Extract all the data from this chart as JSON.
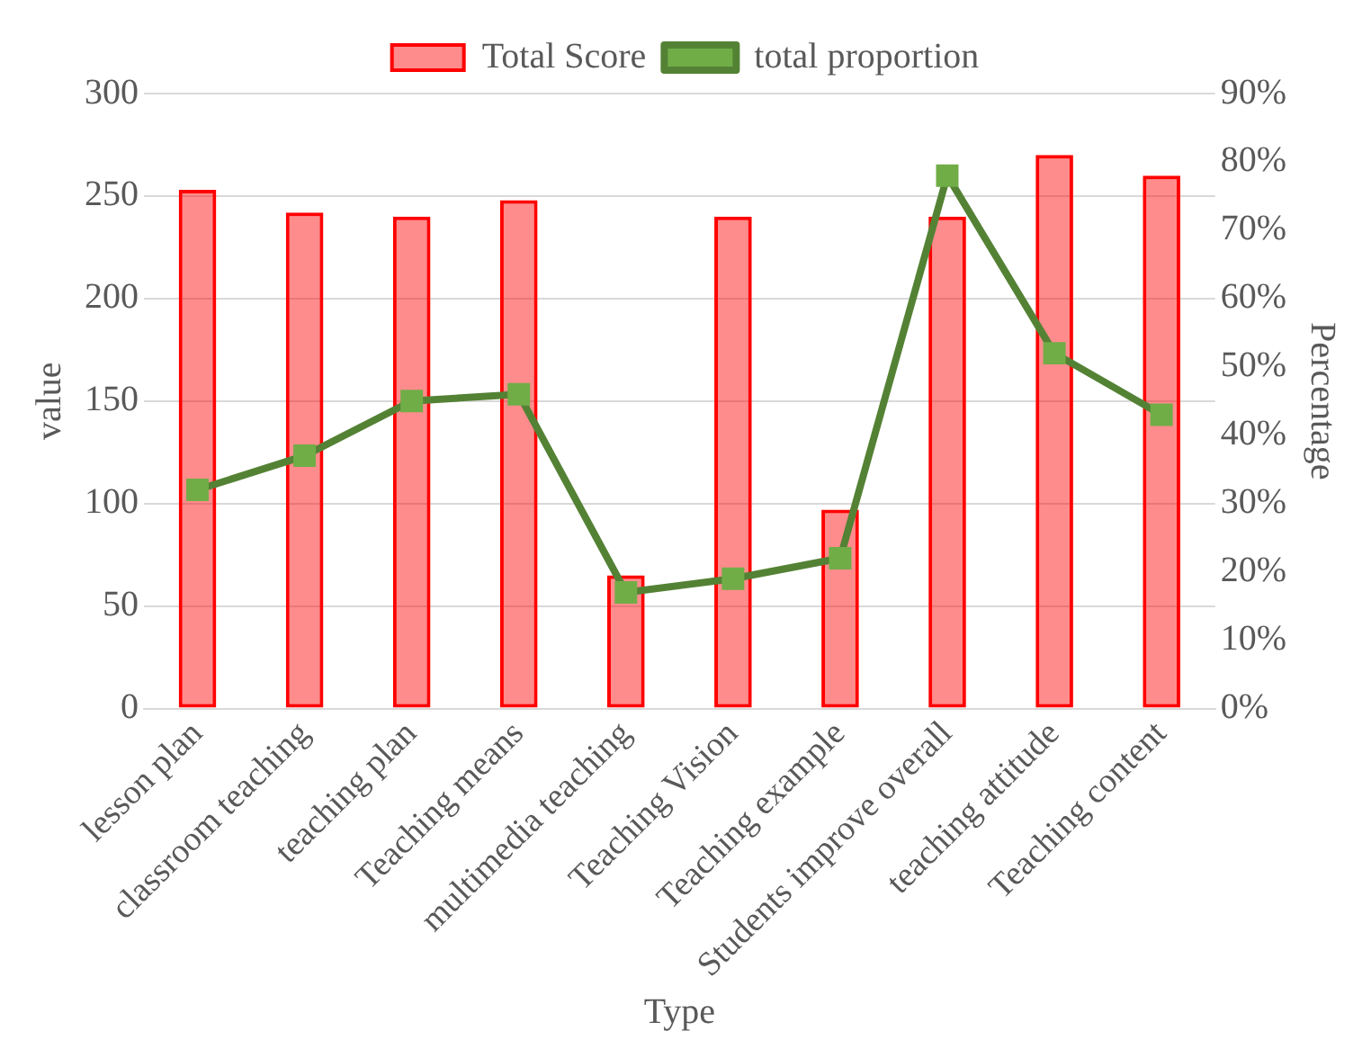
{
  "chart_data": {
    "type": "bar",
    "xlabel": "Type",
    "ylabel": "value",
    "y2label": "Percentage",
    "categories": [
      "lesson plan",
      "classroom teaching",
      "teaching plan",
      "Teaching means",
      "multimedia teaching",
      "Teaching Vision",
      "Teaching example",
      "Students improve overall",
      "teaching attitude",
      "Teaching content"
    ],
    "series": [
      {
        "name": "Total Score",
        "color": "#ff0000",
        "values": [
          253,
          242,
          240,
          248,
          65,
          240,
          97,
          240,
          270,
          260
        ]
      },
      {
        "name": "total proportion",
        "type": "line",
        "axis": "y2",
        "color": "#548235",
        "marker": "square",
        "values": [
          32,
          37,
          45,
          46,
          17,
          19,
          22,
          78,
          52,
          43
        ]
      }
    ],
    "ylim": [
      0,
      300
    ],
    "yticks": [
      0,
      50,
      100,
      150,
      200,
      250,
      300
    ],
    "y2lim": [
      0,
      90
    ],
    "y2ticks": [
      {
        "value": 0,
        "label": "0%"
      },
      {
        "value": 10,
        "label": "10%"
      },
      {
        "value": 20,
        "label": "20%"
      },
      {
        "value": 30,
        "label": "30%"
      },
      {
        "value": 40,
        "label": "40%"
      },
      {
        "value": 50,
        "label": "50%"
      },
      {
        "value": 60,
        "label": "60%"
      },
      {
        "value": 70,
        "label": "70%"
      },
      {
        "value": 80,
        "label": "80%"
      },
      {
        "value": 90,
        "label": "90%"
      }
    ],
    "grid": "y",
    "legend": "top"
  }
}
